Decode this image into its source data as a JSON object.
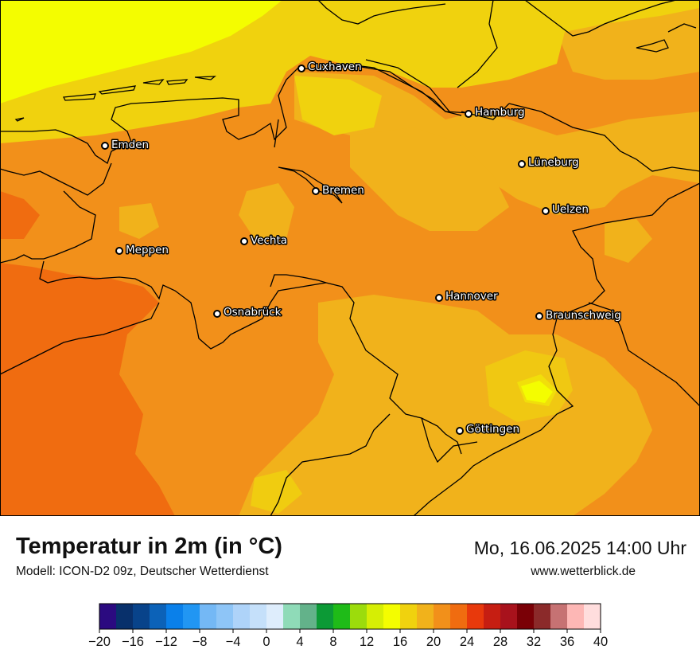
{
  "title": "Temperatur in 2m (in °C)",
  "model": "Modell: ICON-D2 09z, Deutscher Wetterdienst",
  "datetime": "Mo, 16.06.2025 14:00 Uhr",
  "website": "www.wetterblick.de",
  "cities": [
    {
      "name": "Cuxhaven"
    },
    {
      "name": "Hamburg"
    },
    {
      "name": "Emden"
    },
    {
      "name": "Lüneburg"
    },
    {
      "name": "Bremen"
    },
    {
      "name": "Uelzen"
    },
    {
      "name": "Meppen"
    },
    {
      "name": "Vechta"
    },
    {
      "name": "Hannover"
    },
    {
      "name": "Osnabrück"
    },
    {
      "name": "Braunschweig"
    },
    {
      "name": "Göttingen"
    }
  ],
  "legend": {
    "ticks": [
      "−20",
      "−16",
      "−12",
      "−8",
      "−4",
      "0",
      "4",
      "8",
      "12",
      "16",
      "20",
      "24",
      "28",
      "32",
      "36",
      "40"
    ],
    "colors": [
      "#2b0a80",
      "#08306b",
      "#08438a",
      "#0c62b8",
      "#0a80ea",
      "#2196f3",
      "#74b8f5",
      "#8ec5f7",
      "#aed3f9",
      "#c5e0fa",
      "#deedfc",
      "#8fdbb8",
      "#63b28a",
      "#0c9a36",
      "#1fbb18",
      "#9cdc0c",
      "#d6ee04",
      "#f4fd00",
      "#f0d20e",
      "#f1b21b",
      "#f2901a",
      "#f06c10",
      "#e8390c",
      "#c61e12",
      "#a8121c",
      "#7a0006",
      "#8b2a2a",
      "#c67273",
      "#fdb7b5",
      "#ffdddd"
    ]
  },
  "colors": {
    "sea_yellow": "#f4fd00",
    "coast_gold": "#f0d20e",
    "land_light": "#f1b21b",
    "land_orange": "#f2901a",
    "land_dark": "#f06c10"
  }
}
